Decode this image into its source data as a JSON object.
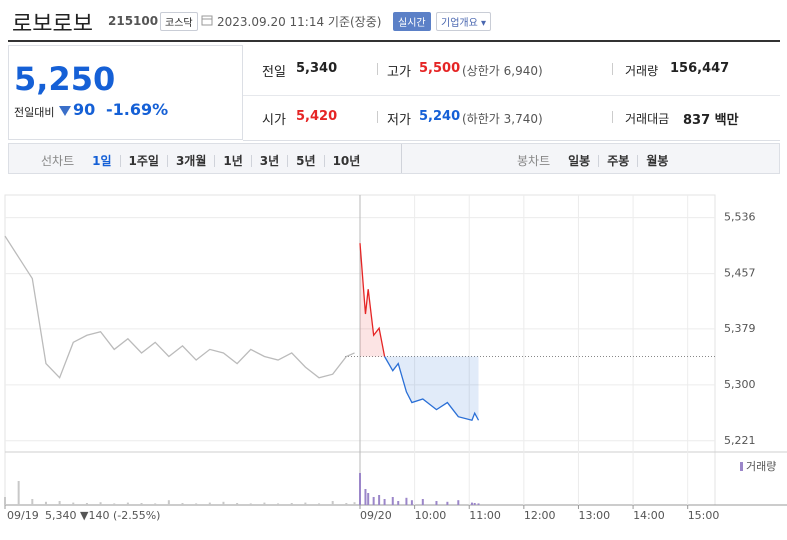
{
  "header": {
    "title": "로보로보",
    "code": "215100",
    "market": "코스닥",
    "timestamp": "2023.09.20 11:14 기준(장중)",
    "buttons": [
      "실시간",
      "기업개요"
    ]
  },
  "quote": {
    "price": "5,250",
    "change_label": "전일대비",
    "change": "90",
    "change_pct": "-1.69%",
    "fields": [
      {
        "label": "전일",
        "value": "5,340"
      },
      {
        "label": "고가",
        "value": "5,500",
        "note": "(상한가 6,940)"
      },
      {
        "label": "거래량",
        "value": "156,447"
      },
      {
        "label": "시가",
        "value": "5,420"
      },
      {
        "label": "저가",
        "value": "5,240",
        "note": "(하한가 3,740)"
      },
      {
        "label": "거래대금",
        "value": "837 백만"
      }
    ]
  },
  "tabs": {
    "line_label": "선차트",
    "line_tabs": [
      "1일",
      "1주일",
      "3개월",
      "1년",
      "3년",
      "5년",
      "10년"
    ],
    "candle_label": "봉차트",
    "candle_tabs": [
      "일봉",
      "주봉",
      "월봉"
    ]
  },
  "chart_data": {
    "type": "line",
    "xlim": [
      0,
      13
    ],
    "ylim": [
      5208,
      5568
    ],
    "xticks": [
      {
        "value": 0,
        "label": "09/19"
      },
      {
        "value": 6.5,
        "label": "09/20"
      },
      {
        "value": 7.5,
        "label": "10:00"
      },
      {
        "value": 8.5,
        "label": "11:00"
      },
      {
        "value": 9.5,
        "label": "12:00"
      },
      {
        "value": 10.5,
        "label": "13:00"
      },
      {
        "value": 11.5,
        "label": "14:00"
      },
      {
        "value": 12.5,
        "label": "15:00"
      }
    ],
    "yticks": [
      {
        "value": 5536,
        "label": "5,536"
      },
      {
        "value": 5457,
        "label": "5,457"
      },
      {
        "value": 5379,
        "label": "5,379"
      },
      {
        "value": 5300,
        "label": "5,300"
      },
      {
        "value": 5221,
        "label": "5,221"
      }
    ],
    "grid": true,
    "reference": 5340,
    "hover_info": "5,340 ▼140 (-2.55%)",
    "volume_label": "거래량",
    "vlim": [
      0,
      100
    ],
    "series": [
      {
        "color": "#bbbbbb",
        "volume_color": "#c8c8c8",
        "x": [
          0,
          0.25,
          0.5,
          0.75,
          1.0,
          1.25,
          1.5,
          1.75,
          2.0,
          2.25,
          2.5,
          2.75,
          3.0,
          3.25,
          3.5,
          3.75,
          4.0,
          4.25,
          4.5,
          4.75,
          5.0,
          5.25,
          5.5,
          5.75,
          6.0,
          6.25,
          6.4
        ],
        "values": [
          5510,
          5480,
          5450,
          5330,
          5310,
          5360,
          5370,
          5375,
          5350,
          5365,
          5345,
          5360,
          5340,
          5355,
          5335,
          5350,
          5345,
          5330,
          5350,
          5340,
          5335,
          5345,
          5325,
          5310,
          5315,
          5340,
          5345
        ],
        "volume": [
          20,
          60,
          15,
          8,
          10,
          6,
          5,
          7,
          4,
          6,
          5,
          4,
          12,
          5,
          4,
          6,
          8,
          5,
          4,
          6,
          4,
          5,
          6,
          4,
          10,
          5,
          7
        ]
      },
      {
        "color": "#e52525",
        "down_color": "#2a6fd6",
        "volume_color": "#9b86c9",
        "x": [
          6.5,
          6.6,
          6.65,
          6.75,
          6.85,
          6.95,
          7.1,
          7.2,
          7.35,
          7.45,
          7.65,
          7.9,
          8.1,
          8.3,
          8.55,
          8.6,
          8.67
        ],
        "values": [
          5500,
          5400,
          5435,
          5370,
          5380,
          5340,
          5320,
          5330,
          5290,
          5275,
          5280,
          5265,
          5275,
          5255,
          5250,
          5260,
          5250
        ],
        "volume": [
          80,
          40,
          30,
          20,
          25,
          15,
          20,
          10,
          18,
          12,
          15,
          10,
          8,
          12,
          6,
          5,
          4
        ]
      }
    ]
  }
}
